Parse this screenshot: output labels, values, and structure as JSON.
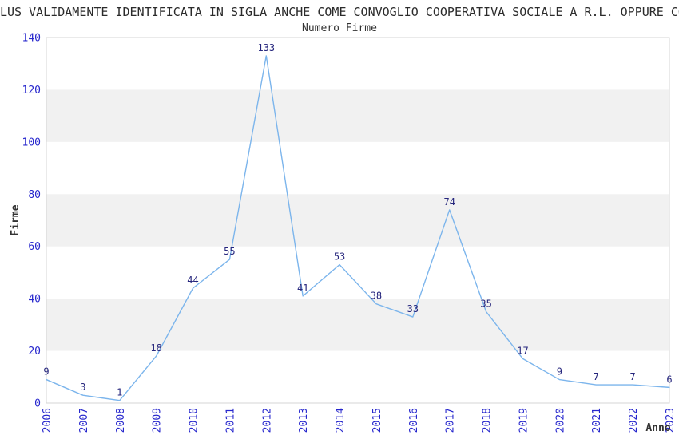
{
  "title": "LUS VALIDAMENTE IDENTIFICATA IN SIGLA ANCHE COME CONVOGLIO COOPERATIVA SOCIALE A R.L. OPPURE CO",
  "subtitle": "Numero Firme",
  "chart_data": {
    "type": "line",
    "title": "Numero Firme",
    "xlabel": "Anno",
    "ylabel": "Firme",
    "categories": [
      "2006",
      "2007",
      "2008",
      "2009",
      "2010",
      "2011",
      "2012",
      "2013",
      "2014",
      "2015",
      "2016",
      "2017",
      "2018",
      "2019",
      "2020",
      "2021",
      "2022",
      "2023"
    ],
    "series": [
      {
        "name": "Firme",
        "values": [
          9,
          3,
          1,
          18,
          44,
          55,
          133,
          41,
          53,
          38,
          33,
          74,
          35,
          17,
          9,
          7,
          7,
          6
        ]
      }
    ],
    "ylim": [
      0,
      140
    ],
    "ytick_step": 20,
    "yticks": [
      0,
      20,
      40,
      60,
      80,
      100,
      120,
      140
    ],
    "grid": "alternating-horizontal-bands",
    "band_ranges": [
      [
        20,
        40
      ],
      [
        60,
        80
      ],
      [
        100,
        120
      ]
    ],
    "legend_position": "none",
    "data_labels_visible": true,
    "x_tick_rotation": -90,
    "colors": {
      "line": "#7cb5ec",
      "tick_label": "#2727cd",
      "data_label": "#26267d",
      "band": "#f1f1f1",
      "plot_border": "#d4d4d4",
      "text": "#333333"
    }
  }
}
